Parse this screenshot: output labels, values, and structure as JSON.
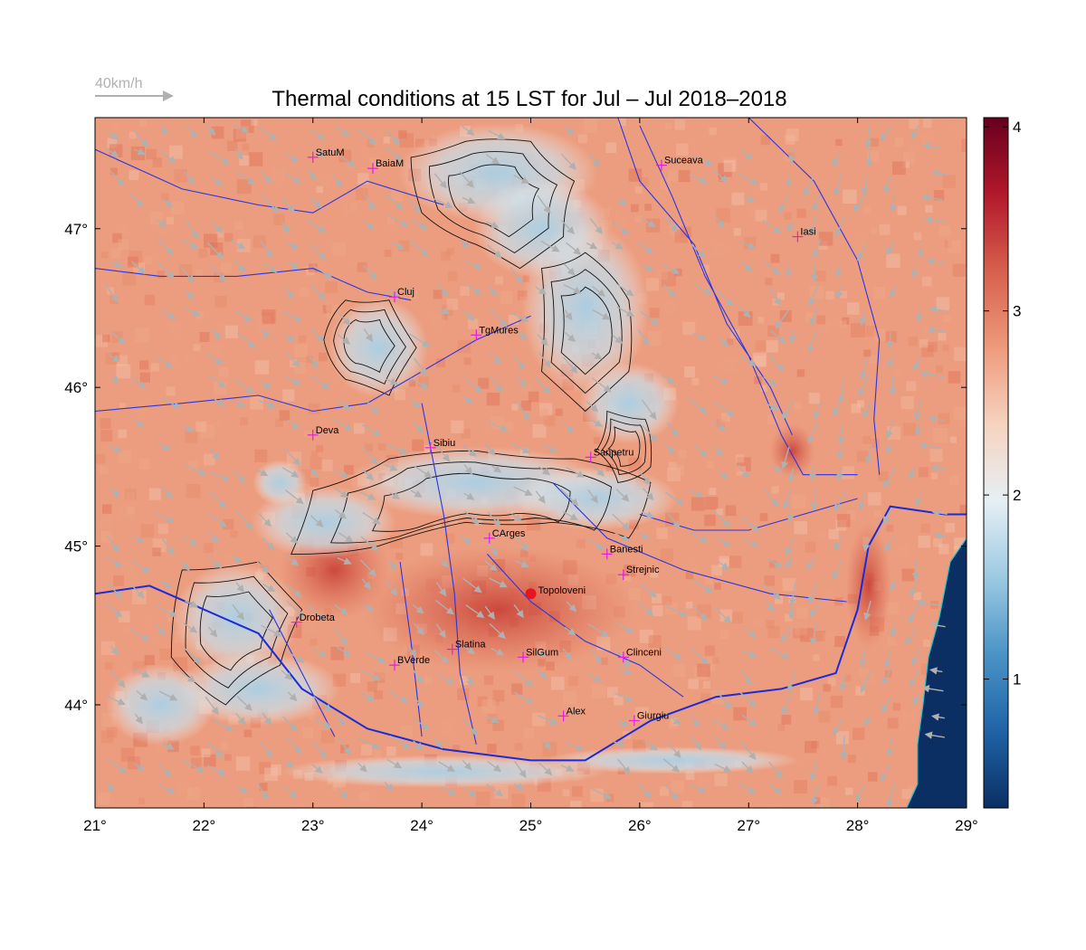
{
  "title": "Thermal conditions at 15 LST for Jul – Jul  2018–2018",
  "wind_scale_label": "40km/h",
  "map": {
    "lon_range": [
      21,
      29
    ],
    "lat_range": [
      43.35,
      47.7
    ],
    "lon_ticks": [
      {
        "value": 21,
        "label": "21°"
      },
      {
        "value": 22,
        "label": "22°"
      },
      {
        "value": 23,
        "label": "23°"
      },
      {
        "value": 24,
        "label": "24°"
      },
      {
        "value": 25,
        "label": "25°"
      },
      {
        "value": 26,
        "label": "26°"
      },
      {
        "value": 27,
        "label": "27°"
      },
      {
        "value": 28,
        "label": "28°"
      },
      {
        "value": 29,
        "label": "29°"
      }
    ],
    "lat_ticks": [
      {
        "value": 44,
        "label": "44°"
      },
      {
        "value": 45,
        "label": "45°"
      },
      {
        "value": 46,
        "label": "46°"
      },
      {
        "value": 47,
        "label": "47°"
      }
    ]
  },
  "colorbar": {
    "range": [
      0.3,
      4.05
    ],
    "ticks": [
      {
        "value": 1,
        "label": "1"
      },
      {
        "value": 2,
        "label": "2"
      },
      {
        "value": 3,
        "label": "3"
      },
      {
        "value": 4,
        "label": "4"
      }
    ],
    "colors": [
      "#0b2f63",
      "#1f63a6",
      "#4a93c6",
      "#9cc9e2",
      "#e6eff4",
      "#f6d3c0",
      "#ef9a7c",
      "#d6604d",
      "#b2182b",
      "#67001f"
    ]
  },
  "stations": [
    {
      "name": "SatuM",
      "lon": 23.0,
      "lat": 47.45
    },
    {
      "name": "BaiaM",
      "lon": 23.55,
      "lat": 47.38
    },
    {
      "name": "Suceava",
      "lon": 26.2,
      "lat": 47.4
    },
    {
      "name": "Iasi",
      "lon": 27.45,
      "lat": 46.95
    },
    {
      "name": "Cluj",
      "lon": 23.75,
      "lat": 46.57
    },
    {
      "name": "TgMures",
      "lon": 24.5,
      "lat": 46.33
    },
    {
      "name": "Deva",
      "lon": 23.0,
      "lat": 45.7
    },
    {
      "name": "Sibiu",
      "lon": 24.08,
      "lat": 45.62
    },
    {
      "name": "Sanpetru",
      "lon": 25.55,
      "lat": 45.56
    },
    {
      "name": "CArges",
      "lon": 24.62,
      "lat": 45.05
    },
    {
      "name": "Banesti",
      "lon": 25.7,
      "lat": 44.95
    },
    {
      "name": "Strejnic",
      "lon": 25.85,
      "lat": 44.82
    },
    {
      "name": "Drobeta",
      "lon": 22.85,
      "lat": 44.52
    },
    {
      "name": "Slatina",
      "lon": 24.28,
      "lat": 44.35
    },
    {
      "name": "SilGum",
      "lon": 24.93,
      "lat": 44.3
    },
    {
      "name": "Clinceni",
      "lon": 25.85,
      "lat": 44.3
    },
    {
      "name": "BVerde",
      "lon": 23.75,
      "lat": 44.25
    },
    {
      "name": "Alex",
      "lon": 25.3,
      "lat": 43.93
    },
    {
      "name": "Giurgiu",
      "lon": 25.95,
      "lat": 43.9
    }
  ],
  "highlight_station": {
    "name": "Topoloveni",
    "lon": 25.0,
    "lat": 44.7
  }
}
